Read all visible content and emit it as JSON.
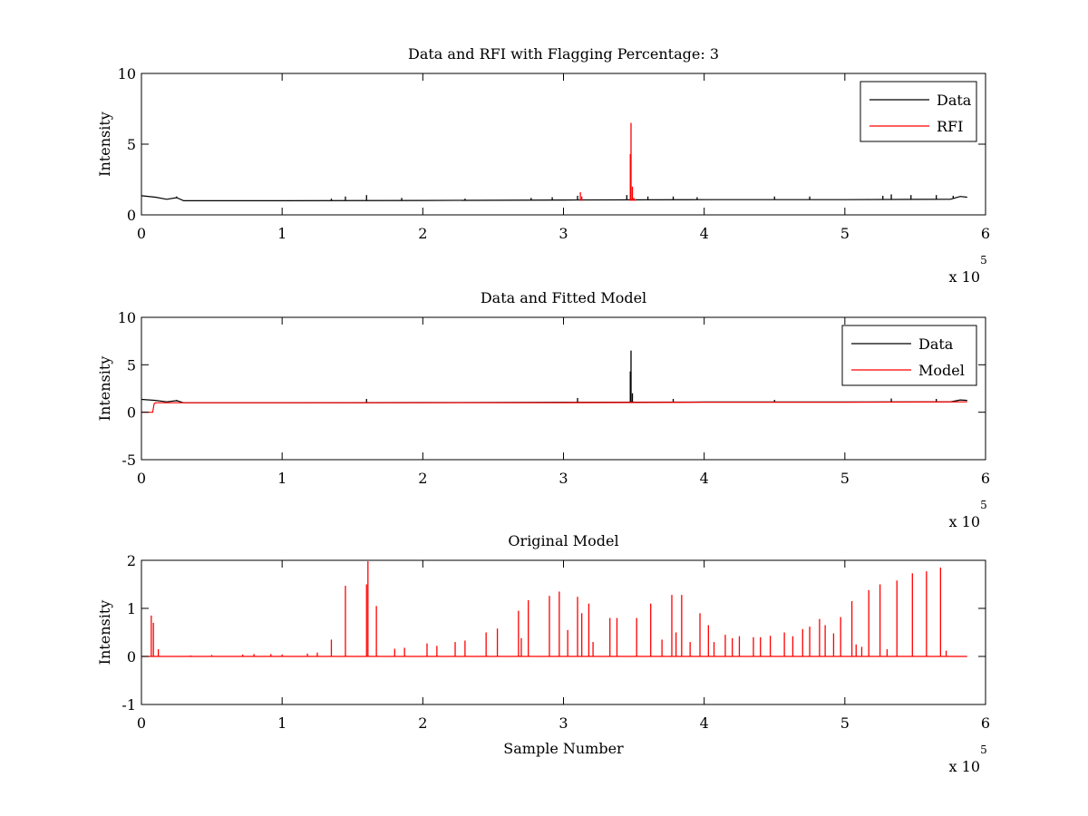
{
  "chart_data": [
    {
      "type": "line",
      "title": "Data and RFI with Flagging Percentage: 3",
      "xlabel": "",
      "ylabel": "Intensity",
      "xlim": [
        0,
        600000
      ],
      "ylim": [
        0,
        10
      ],
      "x_ticks": [
        "0",
        "1",
        "2",
        "3",
        "4",
        "5",
        "6"
      ],
      "y_ticks": [
        "0",
        "5",
        "10"
      ],
      "x_exponent": {
        "base": "x 10",
        "power": "5"
      },
      "grid": false,
      "legend_position": "top-right",
      "series": [
        {
          "name": "Data",
          "color": "#000000",
          "baseline": [
            [
              0,
              1.35
            ],
            [
              10000,
              1.25
            ],
            [
              18000,
              1.1
            ],
            [
              25000,
              1.22
            ],
            [
              30000,
              1.0
            ],
            [
              100000,
              1.0
            ],
            [
              200000,
              1.02
            ],
            [
              300000,
              1.05
            ],
            [
              400000,
              1.08
            ],
            [
              500000,
              1.08
            ],
            [
              575000,
              1.1
            ],
            [
              582000,
              1.3
            ],
            [
              587000,
              1.25
            ]
          ],
          "spikes": [
            [
              25000,
              1.3
            ],
            [
              135000,
              1.15
            ],
            [
              145000,
              1.3
            ],
            [
              160000,
              1.4
            ],
            [
              185000,
              1.2
            ],
            [
              230000,
              1.15
            ],
            [
              277000,
              1.2
            ],
            [
              292000,
              1.25
            ],
            [
              310000,
              1.35
            ],
            [
              345000,
              1.4
            ],
            [
              360000,
              1.3
            ],
            [
              378000,
              1.3
            ],
            [
              395000,
              1.25
            ],
            [
              450000,
              1.3
            ],
            [
              475000,
              1.3
            ],
            [
              527000,
              1.35
            ],
            [
              533000,
              1.45
            ],
            [
              547000,
              1.4
            ],
            [
              565000,
              1.4
            ],
            [
              577000,
              1.35
            ]
          ]
        },
        {
          "name": "RFI",
          "color": "#ff0000",
          "spikes": [
            [
              312000,
              1.6
            ],
            [
              313000,
              1.3
            ],
            [
              347500,
              4.3
            ],
            [
              348000,
              6.5
            ],
            [
              349000,
              2.0
            ],
            [
              350000,
              1.2
            ],
            [
              351000,
              1.1
            ]
          ]
        }
      ]
    },
    {
      "type": "line",
      "title": "Data and Fitted Model",
      "xlabel": "",
      "ylabel": "Intensity",
      "xlim": [
        0,
        600000
      ],
      "ylim": [
        -5,
        10
      ],
      "x_ticks": [
        "0",
        "1",
        "2",
        "3",
        "4",
        "5",
        "6"
      ],
      "y_ticks": [
        "-5",
        "0",
        "5",
        "10"
      ],
      "x_exponent": {
        "base": "x 10",
        "power": "5"
      },
      "grid": false,
      "legend_position": "top-right",
      "series": [
        {
          "name": "Data",
          "color": "#000000",
          "baseline": [
            [
              0,
              1.35
            ],
            [
              10000,
              1.25
            ],
            [
              18000,
              1.1
            ],
            [
              25000,
              1.22
            ],
            [
              30000,
              1.0
            ],
            [
              100000,
              1.0
            ],
            [
              200000,
              1.02
            ],
            [
              300000,
              1.05
            ],
            [
              400000,
              1.08
            ],
            [
              500000,
              1.08
            ],
            [
              575000,
              1.1
            ],
            [
              582000,
              1.3
            ],
            [
              587000,
              1.25
            ]
          ],
          "spikes": [
            [
              25000,
              1.3
            ],
            [
              160000,
              1.4
            ],
            [
              310000,
              1.5
            ],
            [
              347500,
              4.3
            ],
            [
              348000,
              6.5
            ],
            [
              349000,
              2.0
            ],
            [
              378000,
              1.4
            ],
            [
              450000,
              1.3
            ],
            [
              533000,
              1.45
            ],
            [
              565000,
              1.4
            ]
          ]
        },
        {
          "name": "Model",
          "color": "#ff0000",
          "baseline": [
            [
              0,
              0.0
            ],
            [
              8000,
              0.0
            ],
            [
              9000,
              0.9
            ],
            [
              10000,
              1.0
            ],
            [
              100000,
              1.0
            ],
            [
              300000,
              1.0
            ],
            [
              400000,
              1.05
            ],
            [
              500000,
              1.05
            ],
            [
              587000,
              1.1
            ]
          ],
          "spikes": []
        }
      ]
    },
    {
      "type": "line",
      "title": "Original Model",
      "xlabel": "Sample Number",
      "ylabel": "Intensity",
      "xlim": [
        0,
        600000
      ],
      "ylim": [
        -1,
        2
      ],
      "x_ticks": [
        "0",
        "1",
        "2",
        "3",
        "4",
        "5",
        "6"
      ],
      "y_ticks": [
        "-1",
        "0",
        "1",
        "2"
      ],
      "x_exponent": {
        "base": "x 10",
        "power": "5"
      },
      "grid": false,
      "series": [
        {
          "color": "#ff0000",
          "baseline": [
            [
              0,
              0.0
            ],
            [
              587000,
              0.0
            ]
          ],
          "spikes": [
            [
              7000,
              0.85
            ],
            [
              8500,
              0.7
            ],
            [
              12000,
              0.15
            ],
            [
              35000,
              0.02
            ],
            [
              50000,
              0.03
            ],
            [
              72000,
              0.04
            ],
            [
              80000,
              0.05
            ],
            [
              92000,
              0.05
            ],
            [
              100000,
              0.04
            ],
            [
              118000,
              0.06
            ],
            [
              125000,
              0.08
            ],
            [
              135000,
              0.35
            ],
            [
              145000,
              1.47
            ],
            [
              160000,
              1.5
            ],
            [
              161000,
              1.98
            ],
            [
              167000,
              1.05
            ],
            [
              180000,
              0.16
            ],
            [
              187000,
              0.18
            ],
            [
              203000,
              0.27
            ],
            [
              210000,
              0.22
            ],
            [
              223000,
              0.3
            ],
            [
              230000,
              0.33
            ],
            [
              245000,
              0.5
            ],
            [
              253000,
              0.58
            ],
            [
              268000,
              0.95
            ],
            [
              270000,
              0.38
            ],
            [
              275000,
              1.17
            ],
            [
              290000,
              1.26
            ],
            [
              297000,
              1.35
            ],
            [
              303000,
              0.55
            ],
            [
              310000,
              1.24
            ],
            [
              313000,
              0.9
            ],
            [
              318000,
              1.1
            ],
            [
              321000,
              0.3
            ],
            [
              333000,
              0.8
            ],
            [
              338000,
              0.8
            ],
            [
              352000,
              0.8
            ],
            [
              362000,
              1.1
            ],
            [
              370000,
              0.35
            ],
            [
              377000,
              1.28
            ],
            [
              380000,
              0.5
            ],
            [
              384000,
              1.28
            ],
            [
              390000,
              0.3
            ],
            [
              397000,
              0.9
            ],
            [
              403000,
              0.65
            ],
            [
              407000,
              0.3
            ],
            [
              415000,
              0.45
            ],
            [
              420000,
              0.38
            ],
            [
              425000,
              0.42
            ],
            [
              435000,
              0.4
            ],
            [
              440000,
              0.4
            ],
            [
              447000,
              0.43
            ],
            [
              457000,
              0.5
            ],
            [
              463000,
              0.42
            ],
            [
              470000,
              0.57
            ],
            [
              475000,
              0.62
            ],
            [
              482000,
              0.78
            ],
            [
              486000,
              0.65
            ],
            [
              492000,
              0.48
            ],
            [
              497000,
              0.82
            ],
            [
              505000,
              1.15
            ],
            [
              508000,
              0.25
            ],
            [
              512000,
              0.2
            ],
            [
              517000,
              1.38
            ],
            [
              525000,
              1.5
            ],
            [
              530000,
              0.15
            ],
            [
              537000,
              1.58
            ],
            [
              548000,
              1.73
            ],
            [
              558000,
              1.77
            ],
            [
              568000,
              1.85
            ],
            [
              572000,
              0.12
            ]
          ]
        }
      ]
    }
  ]
}
